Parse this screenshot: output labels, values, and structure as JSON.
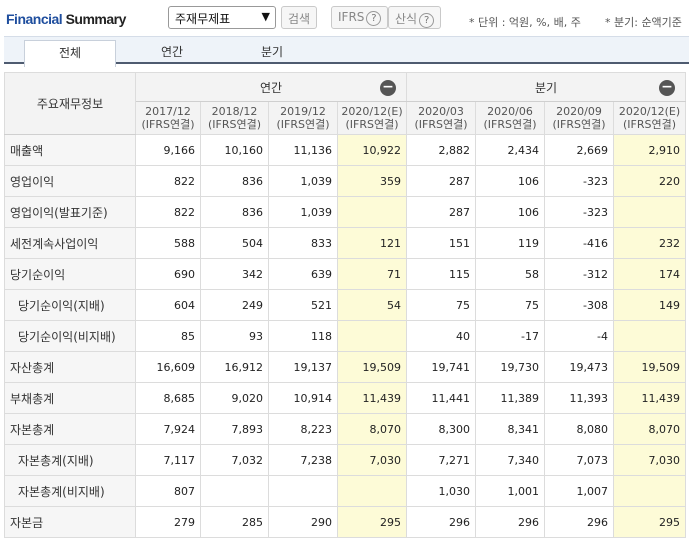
{
  "header": {
    "title_part1": "Financial",
    "title_part2": " Summary",
    "select_value": "주재무제표",
    "search_button": "검색",
    "ifrs_button": "IFRS",
    "formula_button": "산식",
    "unit_note": "* 단위 : 억원, %, 배, 주",
    "quarter_note": "* 분기: 순액기준"
  },
  "tabs": [
    "전체",
    "연간",
    "분기"
  ],
  "table": {
    "row_header": "주요재무정보",
    "group_annual": "연간",
    "group_quarter": "분기",
    "collapse_symbol": "−",
    "columns": [
      {
        "date": "2017/12",
        "basis": "(IFRS연결)",
        "estimate": false
      },
      {
        "date": "2018/12",
        "basis": "(IFRS연결)",
        "estimate": false
      },
      {
        "date": "2019/12",
        "basis": "(IFRS연결)",
        "estimate": false
      },
      {
        "date": "2020/12(E)",
        "basis": "(IFRS연결)",
        "estimate": true
      },
      {
        "date": "2020/03",
        "basis": "(IFRS연결)",
        "estimate": false
      },
      {
        "date": "2020/06",
        "basis": "(IFRS연결)",
        "estimate": false
      },
      {
        "date": "2020/09",
        "basis": "(IFRS연결)",
        "estimate": false
      },
      {
        "date": "2020/12(E)",
        "basis": "(IFRS연결)",
        "estimate": true
      }
    ],
    "rows": [
      {
        "label": "매출액",
        "sub": false,
        "values": [
          "9,166",
          "10,160",
          "11,136",
          "10,922",
          "2,882",
          "2,434",
          "2,669",
          "2,910"
        ]
      },
      {
        "label": "영업이익",
        "sub": false,
        "values": [
          "822",
          "836",
          "1,039",
          "359",
          "287",
          "106",
          "-323",
          "220"
        ]
      },
      {
        "label": "영업이익(발표기준)",
        "sub": false,
        "values": [
          "822",
          "836",
          "1,039",
          "",
          "287",
          "106",
          "-323",
          ""
        ]
      },
      {
        "label": "세전계속사업이익",
        "sub": false,
        "values": [
          "588",
          "504",
          "833",
          "121",
          "151",
          "119",
          "-416",
          "232"
        ]
      },
      {
        "label": "당기순이익",
        "sub": false,
        "values": [
          "690",
          "342",
          "639",
          "71",
          "115",
          "58",
          "-312",
          "174"
        ]
      },
      {
        "label": "당기순이익(지배)",
        "sub": true,
        "values": [
          "604",
          "249",
          "521",
          "54",
          "75",
          "75",
          "-308",
          "149"
        ]
      },
      {
        "label": "당기순이익(비지배)",
        "sub": true,
        "values": [
          "85",
          "93",
          "118",
          "",
          "40",
          "-17",
          "-4",
          ""
        ]
      },
      {
        "label": "자산총계",
        "sub": false,
        "values": [
          "16,609",
          "16,912",
          "19,137",
          "19,509",
          "19,741",
          "19,730",
          "19,473",
          "19,509"
        ]
      },
      {
        "label": "부채총계",
        "sub": false,
        "values": [
          "8,685",
          "9,020",
          "10,914",
          "11,439",
          "11,441",
          "11,389",
          "11,393",
          "11,439"
        ]
      },
      {
        "label": "자본총계",
        "sub": false,
        "values": [
          "7,924",
          "7,893",
          "8,223",
          "8,070",
          "8,300",
          "8,341",
          "8,080",
          "8,070"
        ]
      },
      {
        "label": "자본총계(지배)",
        "sub": true,
        "values": [
          "7,117",
          "7,032",
          "7,238",
          "7,030",
          "7,271",
          "7,340",
          "7,073",
          "7,030"
        ]
      },
      {
        "label": "자본총계(비지배)",
        "sub": true,
        "values": [
          "807",
          "",
          "",
          "",
          "1,030",
          "1,001",
          "1,007",
          ""
        ]
      },
      {
        "label": "자본금",
        "sub": false,
        "values": [
          "279",
          "285",
          "290",
          "295",
          "296",
          "296",
          "296",
          "295"
        ]
      }
    ]
  }
}
